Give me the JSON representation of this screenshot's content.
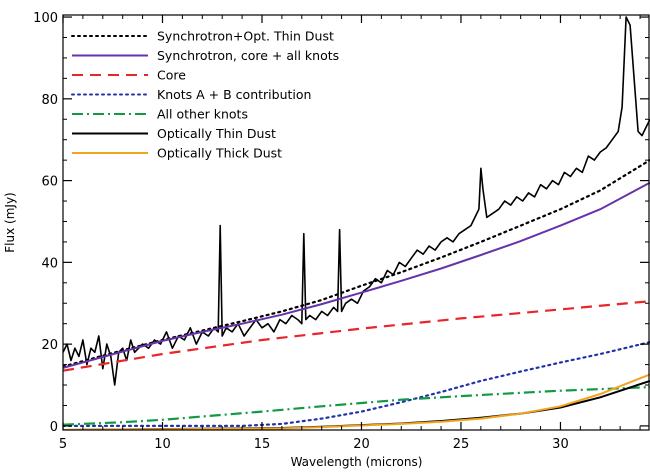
{
  "chart_data": {
    "type": "line",
    "xlabel": "Wavelength (microns)",
    "ylabel": "Flux (mJy)",
    "xlim": [
      5,
      34.5
    ],
    "ylim": [
      -1,
      100.5
    ],
    "xticks": [
      5,
      10,
      15,
      20,
      25,
      30
    ],
    "yticks": [
      0,
      20,
      40,
      60,
      80,
      100
    ],
    "grid": false,
    "legend_position": "top-left",
    "series": [
      {
        "name": "Synchrotron+Opt. Thin Dust",
        "color": "#000000",
        "style": "dotted",
        "x": [
          5,
          8,
          10,
          12,
          14,
          16,
          18,
          20,
          22,
          24,
          26,
          28,
          30,
          32,
          34.5
        ],
        "y": [
          14.5,
          18.5,
          21.0,
          23.3,
          25.6,
          28.0,
          30.8,
          34.3,
          37.6,
          41.2,
          45.0,
          49.0,
          53.0,
          57.6,
          65.0
        ]
      },
      {
        "name": "Synchrotron, core + all knots",
        "color": "#6633aa",
        "style": "solid",
        "x": [
          5,
          8,
          10,
          12,
          14,
          16,
          18,
          20,
          22,
          24,
          26,
          28,
          30,
          32,
          34.5
        ],
        "y": [
          14.2,
          18.2,
          20.8,
          23.0,
          25.0,
          27.2,
          29.8,
          32.6,
          35.5,
          38.5,
          41.8,
          45.2,
          49.0,
          53.0,
          59.5
        ]
      },
      {
        "name": "Core",
        "color": "#e8262a",
        "style": "dashed",
        "x": [
          5,
          10,
          15,
          20,
          25,
          30,
          34.5
        ],
        "y": [
          13.5,
          17.6,
          21.0,
          23.8,
          26.3,
          28.5,
          30.5
        ]
      },
      {
        "name": "Knots A + B contribution",
        "color": "#2233aa",
        "style": "dotted",
        "x": [
          5,
          14,
          16,
          18,
          20,
          22,
          24,
          26,
          28,
          30,
          32,
          34.5
        ],
        "y": [
          0,
          0,
          0.5,
          1.8,
          3.5,
          5.8,
          8.3,
          11.0,
          13.3,
          15.5,
          17.6,
          20.5
        ]
      },
      {
        "name": "All other knots",
        "color": "#119944",
        "style": "dashdot",
        "x": [
          5,
          8,
          10,
          12,
          15,
          18,
          20,
          22,
          25,
          28,
          30,
          32,
          34.5
        ],
        "y": [
          0.3,
          0.9,
          1.5,
          2.3,
          3.5,
          4.8,
          5.6,
          6.4,
          7.3,
          8.1,
          8.6,
          9.0,
          9.5
        ]
      },
      {
        "name": "Optically Thin Dust",
        "color": "#000000",
        "style": "solid",
        "x": [
          5,
          16,
          18,
          20,
          22,
          24,
          26,
          28,
          30,
          32,
          34.5
        ],
        "y": [
          -1,
          -0.5,
          -0.2,
          0.2,
          0.6,
          1.2,
          2.0,
          3.0,
          4.5,
          7.0,
          11.0
        ]
      },
      {
        "name": "Optically Thick Dust",
        "color": "#f2a31f",
        "style": "solid",
        "x": [
          5,
          16,
          18,
          20,
          22,
          24,
          26,
          28,
          30,
          32,
          34.5
        ],
        "y": [
          -1,
          -0.6,
          -0.3,
          0.1,
          0.5,
          1.0,
          1.8,
          3.0,
          4.8,
          7.8,
          12.6
        ]
      }
    ],
    "spectrum": {
      "x": [
        5.0,
        5.2,
        5.4,
        5.6,
        5.8,
        6.0,
        6.2,
        6.4,
        6.6,
        6.8,
        7.0,
        7.2,
        7.4,
        7.6,
        7.8,
        8.0,
        8.2,
        8.4,
        8.6,
        8.8,
        9.0,
        9.3,
        9.6,
        9.9,
        10.2,
        10.5,
        10.8,
        11.1,
        11.4,
        11.7,
        12.0,
        12.3,
        12.6,
        12.8,
        12.9,
        13.0,
        13.2,
        13.5,
        13.8,
        14.1,
        14.4,
        14.7,
        15.0,
        15.3,
        15.6,
        15.9,
        16.2,
        16.5,
        16.8,
        17.0,
        17.1,
        17.2,
        17.4,
        17.7,
        18.0,
        18.3,
        18.6,
        18.8,
        18.9,
        19.0,
        19.2,
        19.5,
        19.8,
        20.1,
        20.4,
        20.7,
        21.0,
        21.3,
        21.6,
        21.9,
        22.2,
        22.5,
        22.8,
        23.1,
        23.4,
        23.7,
        24.0,
        24.3,
        24.6,
        24.9,
        25.2,
        25.5,
        25.7,
        25.9,
        26.0,
        26.1,
        26.3,
        26.6,
        26.9,
        27.2,
        27.5,
        27.8,
        28.1,
        28.4,
        28.7,
        29.0,
        29.3,
        29.6,
        29.9,
        30.2,
        30.5,
        30.8,
        31.1,
        31.4,
        31.7,
        32.0,
        32.3,
        32.6,
        32.9,
        33.1,
        33.3,
        33.5,
        33.7,
        33.9,
        34.1,
        34.3,
        34.5
      ],
      "y": [
        18,
        20,
        16,
        19,
        17,
        21,
        15,
        19,
        18,
        22,
        14,
        20,
        17,
        10,
        18,
        19,
        16,
        21,
        18,
        19,
        20,
        19,
        21,
        20,
        23,
        19,
        22,
        21,
        24,
        20,
        23,
        22,
        24,
        23,
        49,
        22,
        24,
        23,
        25,
        22,
        24,
        26,
        24,
        25,
        23,
        26,
        25,
        27,
        26,
        25,
        47,
        26,
        27,
        26,
        28,
        27,
        29,
        28,
        48,
        28,
        30,
        31,
        30,
        33,
        34,
        36,
        35,
        38,
        37,
        40,
        39,
        41,
        43,
        42,
        44,
        43,
        45,
        46,
        45,
        47,
        48,
        49,
        51,
        53,
        63,
        58,
        51,
        52,
        53,
        55,
        54,
        56,
        55,
        57,
        56,
        59,
        58,
        60,
        59,
        62,
        61,
        63,
        62,
        66,
        65,
        67,
        68,
        70,
        72,
        78,
        100,
        98,
        85,
        72,
        71,
        73,
        75
      ]
    }
  }
}
